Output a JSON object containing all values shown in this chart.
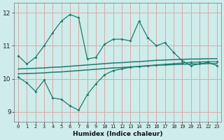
{
  "xlabel": "Humidex (Indice chaleur)",
  "xlim": [
    -0.5,
    23.5
  ],
  "ylim": [
    8.7,
    12.3
  ],
  "yticks": [
    9,
    10,
    11,
    12
  ],
  "xticks": [
    0,
    1,
    2,
    3,
    4,
    5,
    6,
    7,
    8,
    9,
    10,
    11,
    12,
    13,
    14,
    15,
    16,
    17,
    18,
    19,
    20,
    21,
    22,
    23
  ],
  "bg_color": "#cdecea",
  "grid_color": "#dba8a8",
  "line_color": "#1e7b6e",
  "line1": [
    10.7,
    10.45,
    10.65,
    11.0,
    11.4,
    11.75,
    11.95,
    11.85,
    10.6,
    10.65,
    11.05,
    11.2,
    11.2,
    11.15,
    11.75,
    11.25,
    11.0,
    11.1,
    10.8,
    10.55,
    10.4,
    10.45,
    10.5,
    10.4
  ],
  "line2": [
    10.3,
    10.31,
    10.32,
    10.33,
    10.35,
    10.36,
    10.38,
    10.4,
    10.42,
    10.44,
    10.46,
    10.48,
    10.49,
    10.51,
    10.52,
    10.54,
    10.56,
    10.57,
    10.58,
    10.59,
    10.6,
    10.6,
    10.61,
    10.61
  ],
  "line3": [
    10.15,
    10.16,
    10.17,
    10.18,
    10.2,
    10.21,
    10.23,
    10.25,
    10.27,
    10.29,
    10.31,
    10.33,
    10.34,
    10.36,
    10.37,
    10.39,
    10.41,
    10.42,
    10.43,
    10.44,
    10.45,
    10.45,
    10.46,
    10.46
  ],
  "line4": [
    10.05,
    9.88,
    9.62,
    9.96,
    9.42,
    9.38,
    9.18,
    9.05,
    9.52,
    9.85,
    10.12,
    10.25,
    10.3,
    10.35,
    10.38,
    10.4,
    10.42,
    10.44,
    10.46,
    10.48,
    10.5,
    10.51,
    10.52,
    10.52
  ],
  "xlabel_fontsize": 6.5,
  "xlabel_fontweight": "bold",
  "ytick_fontsize": 6.5,
  "xtick_fontsize": 5.0
}
